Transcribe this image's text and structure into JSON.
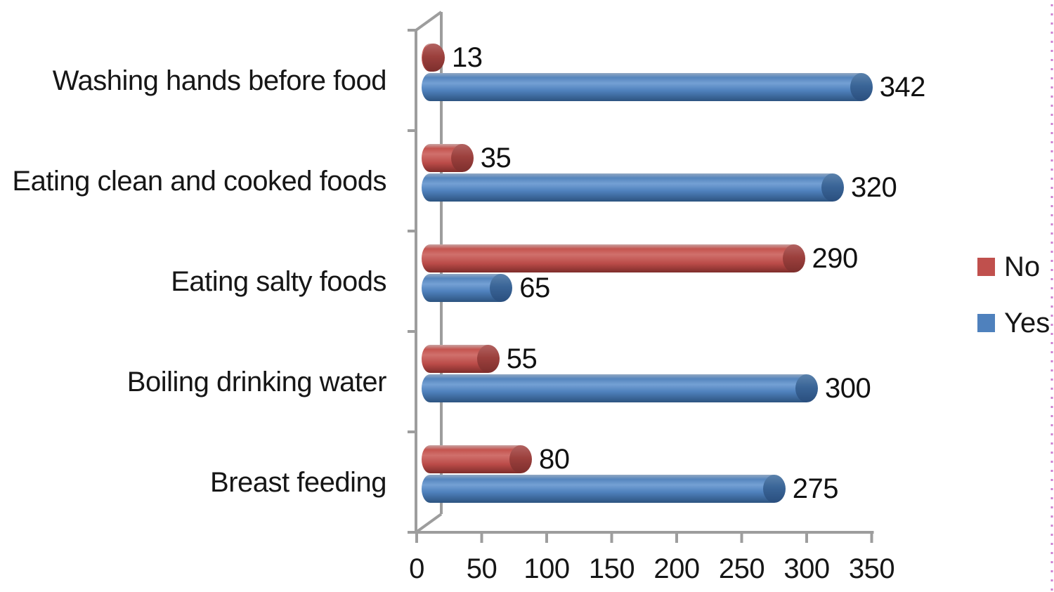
{
  "chart_data": {
    "type": "bar",
    "orientation": "horizontal",
    "style": "3d-cylinder",
    "title": "",
    "xlabel": "",
    "ylabel": "",
    "categories": [
      "Washing hands before food",
      "Eating clean and cooked foods",
      "Eating salty foods",
      "Boiling drinking water",
      "Breast feeding"
    ],
    "series": [
      {
        "name": "No",
        "color": "#C0504D",
        "values": [
          13,
          35,
          290,
          55,
          80
        ]
      },
      {
        "name": "Yes",
        "color": "#4F81BD",
        "values": [
          342,
          320,
          65,
          300,
          275
        ]
      }
    ],
    "x_ticks": [
      0,
      50,
      100,
      150,
      200,
      250,
      300,
      350
    ],
    "xlim": [
      0,
      350
    ],
    "data_labels": true,
    "grid": false,
    "legend_position": "right"
  },
  "colors": {
    "axis": "#9D9D9D",
    "text": "#161616",
    "background": "#FFFFFF",
    "border_dots": "#CD7FD0"
  }
}
